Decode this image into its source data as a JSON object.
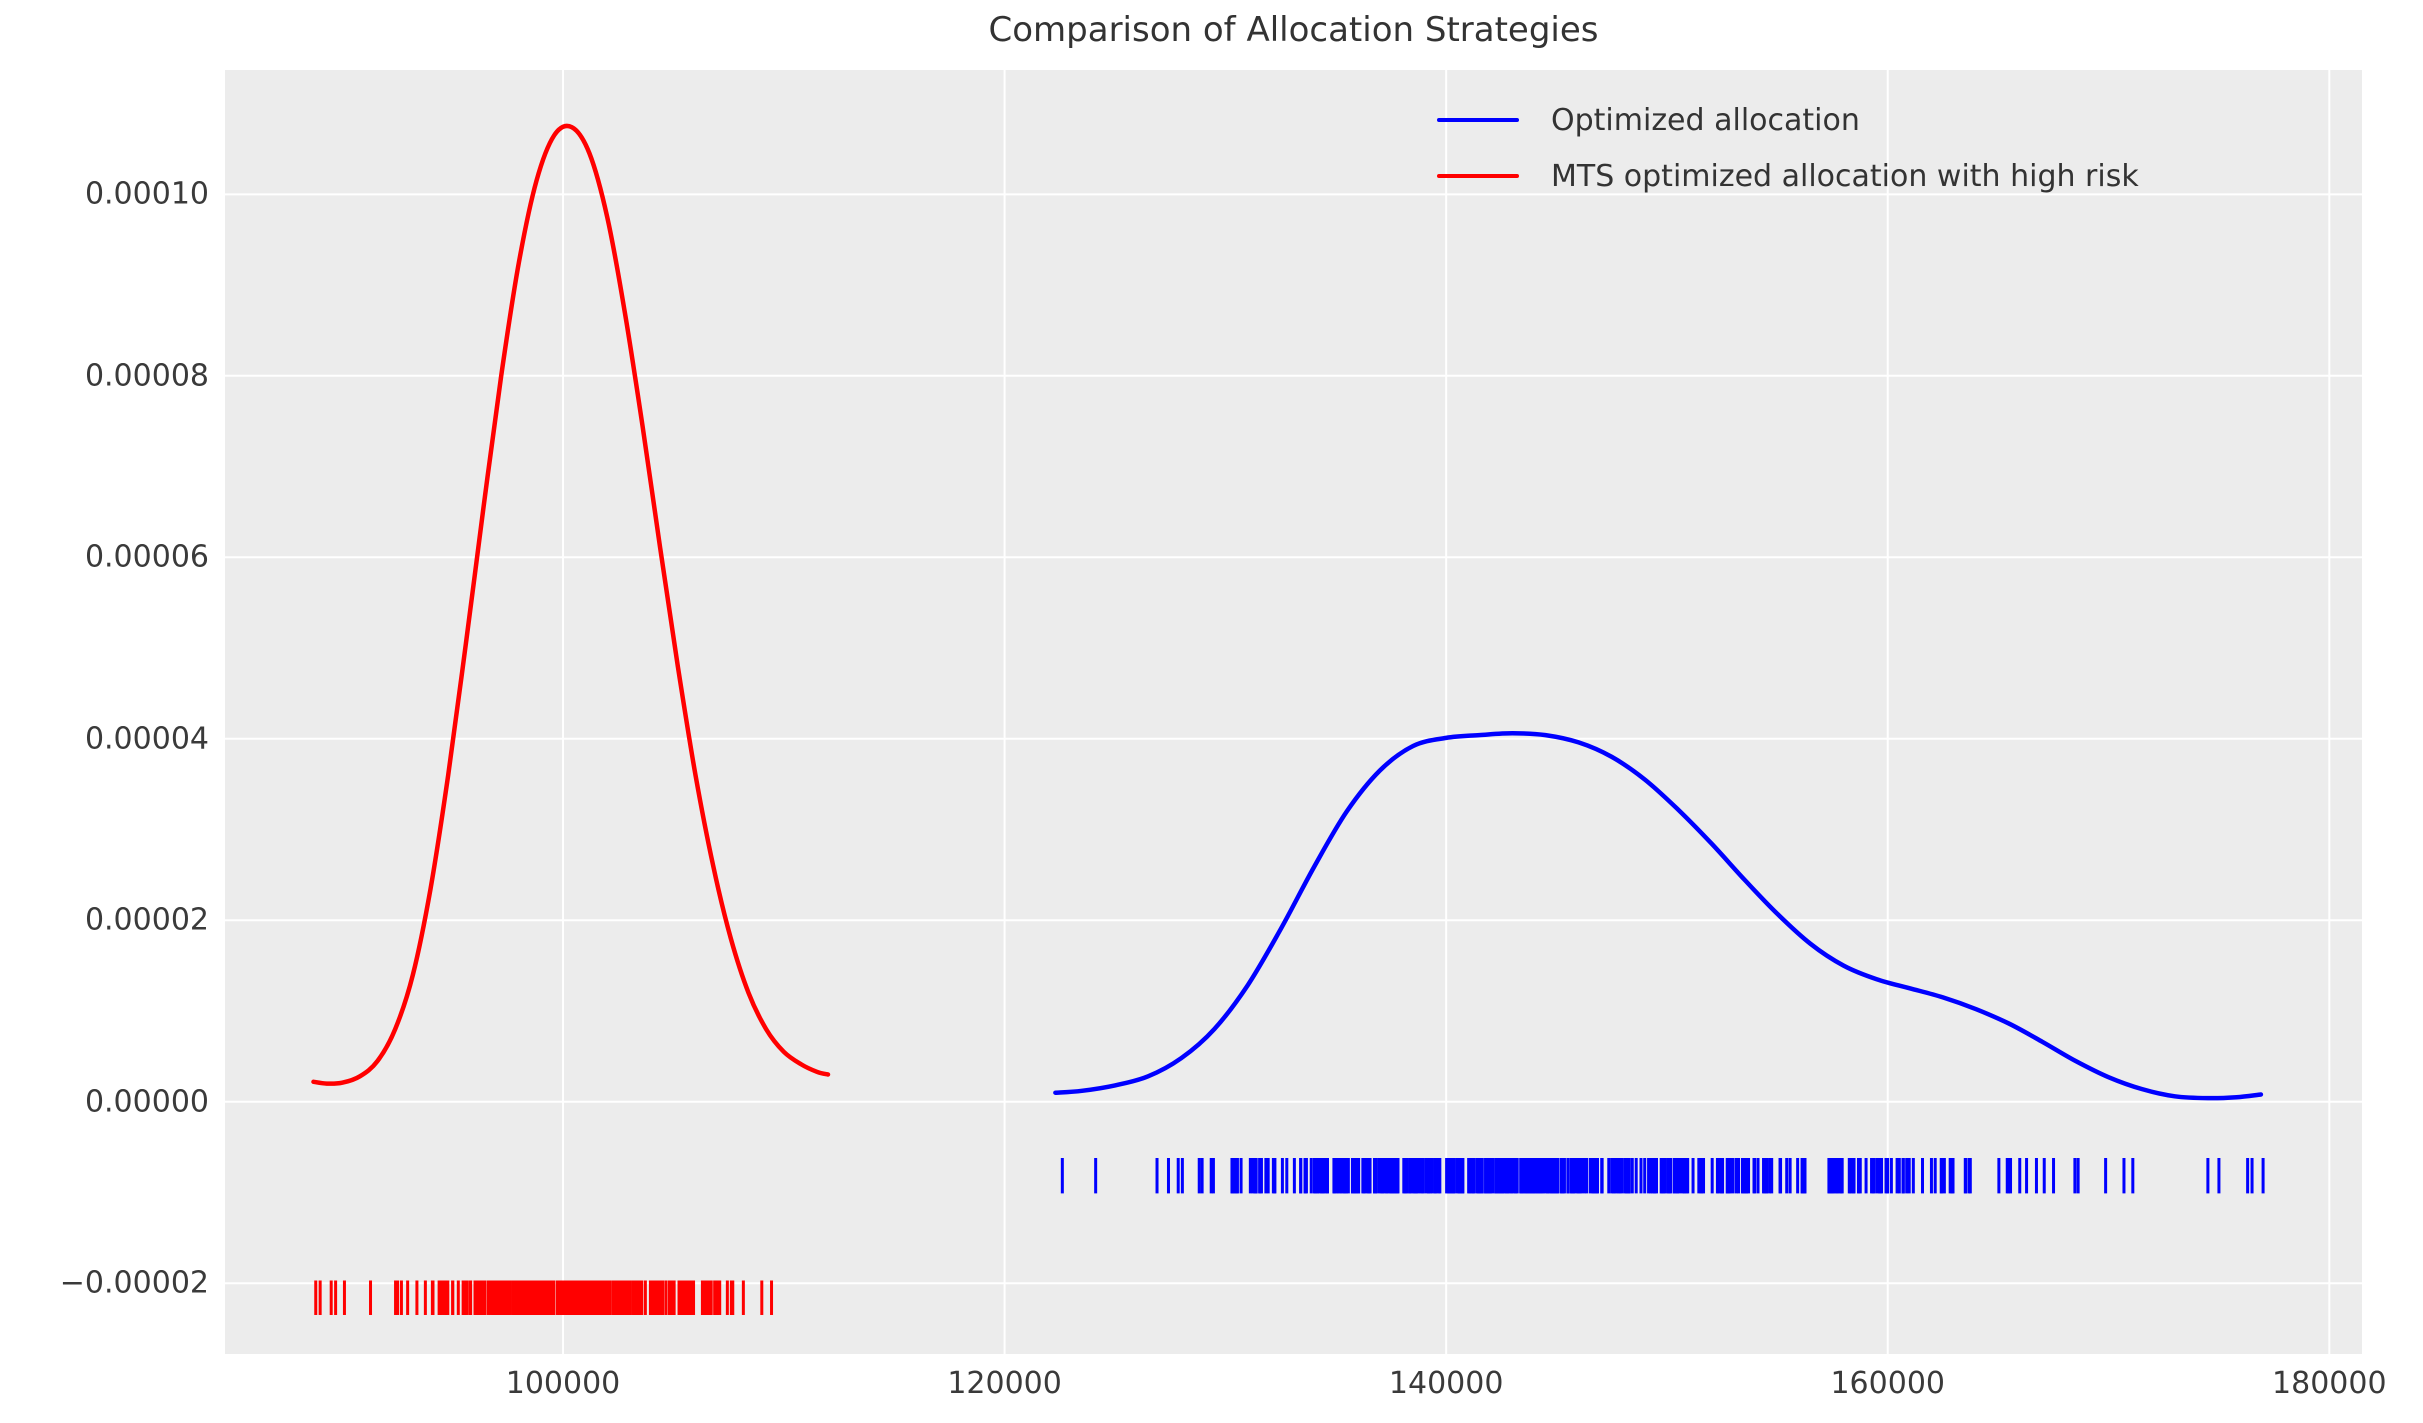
{
  "figure": {
    "background": "#ffffff",
    "plot_background": "#ececec",
    "grid_color": "#ffffff",
    "text_color": "#333333"
  },
  "chart_data": {
    "type": "line",
    "title": "Comparison of Allocation Strategies",
    "xlabel": "",
    "ylabel": "",
    "grid": true,
    "legend_position": "upper right",
    "xlim": [
      84690,
      181480
    ],
    "ylim": [
      -2.78e-05,
      0.0001137
    ],
    "xticks": {
      "values": [
        100000,
        120000,
        140000,
        160000,
        180000
      ],
      "labels": [
        "100000",
        "120000",
        "140000",
        "160000",
        "180000"
      ]
    },
    "yticks": {
      "values": [
        0.0001,
        8e-05,
        6e-05,
        4e-05,
        2e-05,
        0,
        -2e-05
      ],
      "labels": [
        "0.00010",
        "0.00008",
        "0.00006",
        "0.00004",
        "0.00002",
        "0.00000",
        "−0.00002"
      ]
    },
    "series": [
      {
        "name": "Optimized allocation",
        "color": "#0000ff",
        "peak": {
          "x": 143000,
          "density": 4.06e-05
        },
        "points": [
          [
            122300,
            1e-06
          ],
          [
            123500,
            1.2e-06
          ],
          [
            125000,
            1.8e-06
          ],
          [
            126500,
            2.8e-06
          ],
          [
            128000,
            4.8e-06
          ],
          [
            129500,
            8e-06
          ],
          [
            131000,
            1.28e-05
          ],
          [
            132500,
            1.9e-05
          ],
          [
            134000,
            2.58e-05
          ],
          [
            135500,
            3.2e-05
          ],
          [
            137000,
            3.65e-05
          ],
          [
            138500,
            3.92e-05
          ],
          [
            140000,
            4.01e-05
          ],
          [
            141500,
            4.04e-05
          ],
          [
            143000,
            4.06e-05
          ],
          [
            144500,
            4.04e-05
          ],
          [
            146000,
            3.96e-05
          ],
          [
            147500,
            3.8e-05
          ],
          [
            149000,
            3.55e-05
          ],
          [
            150500,
            3.22e-05
          ],
          [
            152000,
            2.85e-05
          ],
          [
            153500,
            2.45e-05
          ],
          [
            155000,
            2.07e-05
          ],
          [
            156500,
            1.74e-05
          ],
          [
            158000,
            1.5e-05
          ],
          [
            159500,
            1.35e-05
          ],
          [
            161000,
            1.25e-05
          ],
          [
            162500,
            1.15e-05
          ],
          [
            164000,
            1.02e-05
          ],
          [
            165500,
            8.6e-06
          ],
          [
            167000,
            6.6e-06
          ],
          [
            168500,
            4.5e-06
          ],
          [
            170000,
            2.7e-06
          ],
          [
            171500,
            1.4e-06
          ],
          [
            173000,
            6e-07
          ],
          [
            174500,
            4e-07
          ],
          [
            175800,
            5e-07
          ],
          [
            176900,
            8e-07
          ]
        ],
        "rug": {
          "band": [
            -6.2e-06,
            -1.01e-05
          ],
          "n": 450,
          "seed": 7,
          "clip": [
            122360,
            170800
          ],
          "components": [
            {
              "mean": 142500,
              "std": 7000,
              "weight": 0.78
            },
            {
              "mean": 157500,
              "std": 7500,
              "weight": 0.22
            }
          ],
          "extra_ticks": [
            171100,
            174500,
            175000,
            176300,
            176500,
            177000
          ]
        }
      },
      {
        "name": "MTS optimized allocation with high risk",
        "color": "#ff0000",
        "peak": {
          "x": 100400,
          "density": 0.0001074
        },
        "points": [
          [
            88700,
            2.2e-06
          ],
          [
            89300,
            2e-06
          ],
          [
            90000,
            2.1e-06
          ],
          [
            90800,
            2.8e-06
          ],
          [
            91600,
            4.5e-06
          ],
          [
            92400,
            8e-06
          ],
          [
            93200,
            1.4e-05
          ],
          [
            94000,
            2.35e-05
          ],
          [
            94800,
            3.6e-05
          ],
          [
            95600,
            5.05e-05
          ],
          [
            96400,
            6.55e-05
          ],
          [
            97200,
            8e-05
          ],
          [
            98000,
            9.25e-05
          ],
          [
            98800,
            0.0001015
          ],
          [
            99600,
            0.0001065
          ],
          [
            100400,
            0.0001074
          ],
          [
            101200,
            0.0001045
          ],
          [
            102000,
            9.75e-05
          ],
          [
            102800,
            8.7e-05
          ],
          [
            103600,
            7.45e-05
          ],
          [
            104400,
            6.1e-05
          ],
          [
            105200,
            4.8e-05
          ],
          [
            106000,
            3.6e-05
          ],
          [
            106800,
            2.6e-05
          ],
          [
            107600,
            1.8e-05
          ],
          [
            108400,
            1.2e-05
          ],
          [
            109200,
            8e-06
          ],
          [
            110000,
            5.5e-06
          ],
          [
            110800,
            4.1e-06
          ],
          [
            111500,
            3.3e-06
          ],
          [
            112000,
            3e-06
          ]
        ],
        "rug": {
          "band": [
            -1.97e-05,
            -2.35e-05
          ],
          "n": 330,
          "seed": 13,
          "clip": [
            90400,
            111800
          ],
          "components": [
            {
              "mean": 100400,
              "std": 3500,
              "weight": 0.96
            },
            {
              "mean": 100000,
              "std": 6500,
              "weight": 0.04
            }
          ],
          "extra_ticks": [
            88800,
            89000,
            89500,
            89700,
            90100
          ]
        }
      }
    ]
  }
}
